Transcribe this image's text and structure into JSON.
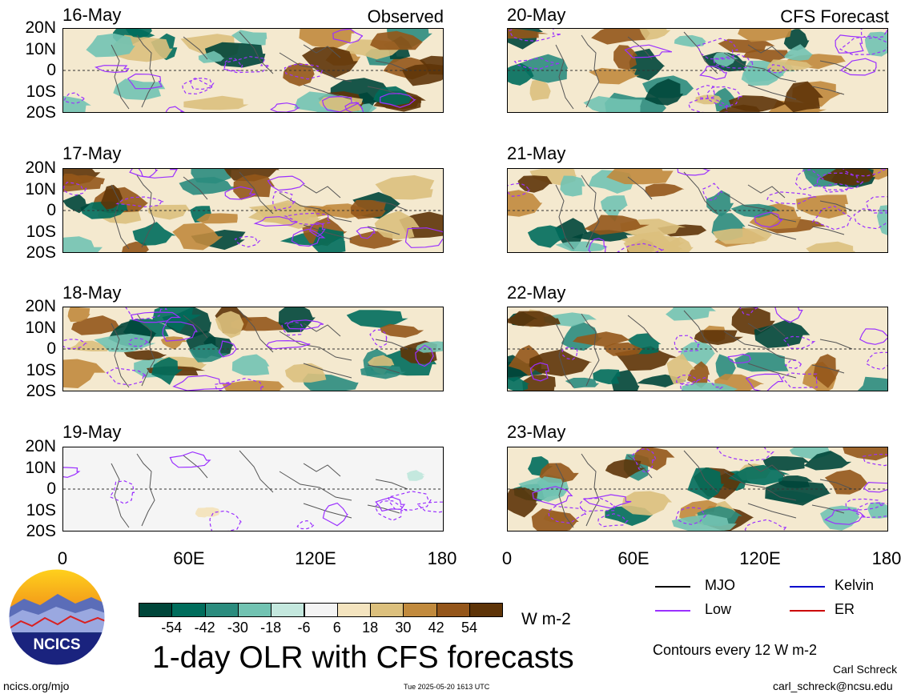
{
  "panels": [
    {
      "date": "16-May",
      "source": "Observed"
    },
    {
      "date": "17-May",
      "source": ""
    },
    {
      "date": "18-May",
      "source": ""
    },
    {
      "date": "19-May",
      "source": ""
    },
    {
      "date": "20-May",
      "source": "CFS Forecast"
    },
    {
      "date": "21-May",
      "source": ""
    },
    {
      "date": "22-May",
      "source": ""
    },
    {
      "date": "23-May",
      "source": ""
    }
  ],
  "lat_labels": [
    "20N",
    "10N",
    "0",
    "10S",
    "20S"
  ],
  "lon_labels": [
    "0",
    "60E",
    "120E",
    "180"
  ],
  "colorbar": {
    "colors": [
      "#00463a",
      "#006d5c",
      "#2b8c7e",
      "#72c3b2",
      "#c4e8de",
      "#f4f4f4",
      "#f4e4bf",
      "#dcc07d",
      "#c18a3d",
      "#94561a",
      "#5e3408"
    ],
    "labels": [
      "-54",
      "-42",
      "-30",
      "-18",
      "-6",
      "6",
      "18",
      "30",
      "42",
      "54"
    ],
    "units": "W m-2"
  },
  "legend": {
    "items": [
      {
        "label": "MJO",
        "color": "#000000"
      },
      {
        "label": "Kelvin",
        "color": "#0000cc"
      },
      {
        "label": "Low",
        "color": "#9b30ff"
      },
      {
        "label": "ER",
        "color": "#cc0000"
      }
    ],
    "note": "Contours every 12 W m-2"
  },
  "title": "1-day OLR with CFS forecasts",
  "logo_text": "NCICS",
  "footer": {
    "url": "ncics.org/mjo",
    "timestamp": "Tue 2025-05-20 1613 UTC",
    "author": "Carl Schreck",
    "email": "carl_schreck@ncsu.edu"
  }
}
